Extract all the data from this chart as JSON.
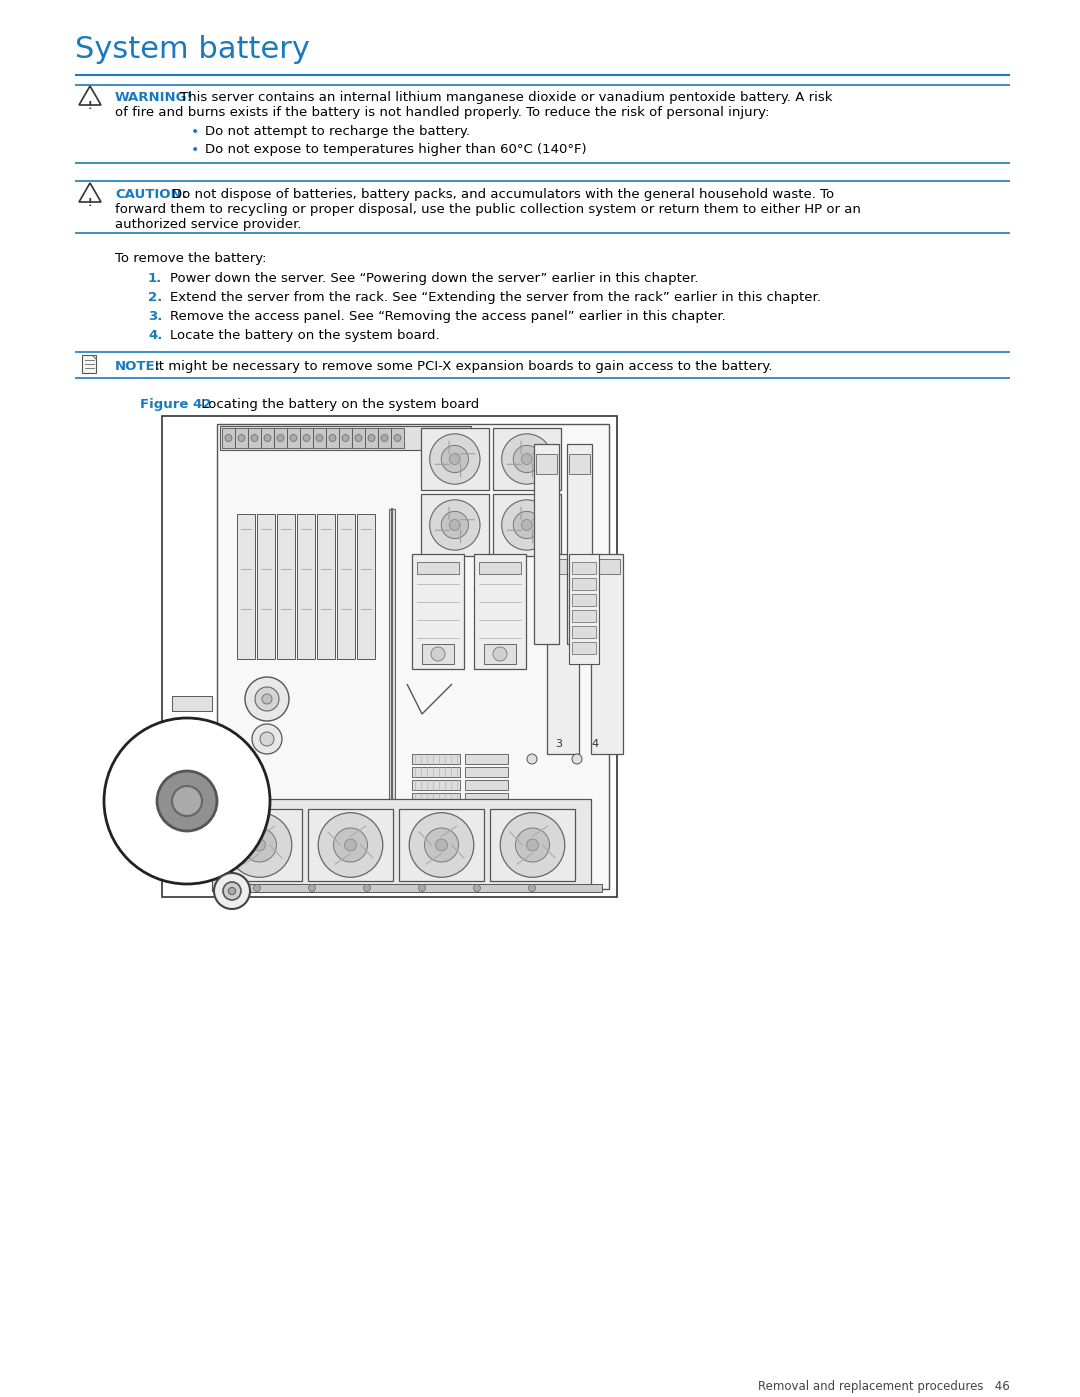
{
  "title": "System battery",
  "title_color": "#1a7abf",
  "bg_color": "#ffffff",
  "line_color": "#1a7abf",
  "text_color": "#000000",
  "blue_color": "#1a7abf",
  "dark_color": "#222222",
  "warning_label": "WARNING!",
  "warning_text1": "This server contains an internal lithium manganese dioxide or vanadium pentoxide battery. A risk",
  "warning_text2": "of fire and burns exists if the battery is not handled properly. To reduce the risk of personal injury:",
  "warning_bullets": [
    "Do not attempt to recharge the battery.",
    "Do not expose to temperatures higher than 60°C (140°F)"
  ],
  "caution_label": "CAUTION:",
  "caution_text1": "Do not dispose of batteries, battery packs, and accumulators with the general household waste. To",
  "caution_text2": "forward them to recycling or proper disposal, use the public collection system or return them to either HP or an",
  "caution_text3": "authorized service provider.",
  "intro_text": "To remove the battery:",
  "steps": [
    "Power down the server. See “Powering down the server” earlier in this chapter.",
    "Extend the server from the rack. See “Extending the server from the rack” earlier in this chapter.",
    "Remove the access panel. See “Removing the access panel” earlier in this chapter.",
    "Locate the battery on the system board."
  ],
  "note_label": "NOTE:",
  "note_text": "It might be necessary to remove some PCI-X expansion boards to gain access to the battery.",
  "figure_label": "Figure 42",
  "figure_caption": " Locating the battery on the system board",
  "footer_text": "Removal and replacement procedures   46"
}
